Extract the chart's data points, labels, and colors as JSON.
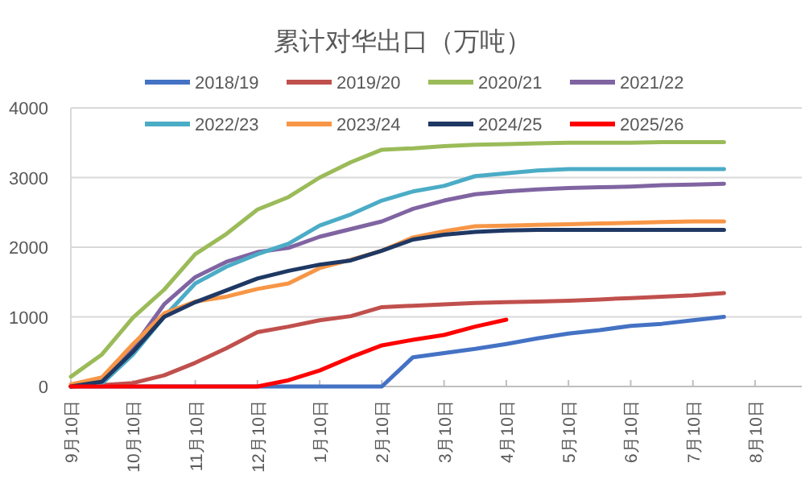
{
  "chart_data": {
    "type": "line",
    "title": "累计对华出口（万吨）",
    "legend": "top",
    "grid": "y",
    "ylim": [
      0,
      4000
    ],
    "yticks": [
      0,
      1000,
      2000,
      3000,
      4000
    ],
    "categories": [
      "9月10日",
      null,
      "10月10日",
      null,
      "11月10日",
      null,
      "12月10日",
      null,
      "1月10日",
      null,
      "2月10日",
      null,
      "3月10日",
      null,
      "4月10日",
      null,
      "5月10日",
      null,
      "6月10日",
      null,
      "7月10日",
      null,
      "8月10日",
      null
    ],
    "series": [
      {
        "name": "2018/19",
        "color": "#4472c4",
        "values": [
          0,
          0,
          0,
          0,
          0,
          0,
          0,
          0,
          0,
          0,
          0,
          420,
          480,
          540,
          610,
          690,
          760,
          810,
          870,
          900,
          950,
          1000,
          null,
          null
        ]
      },
      {
        "name": "2019/20",
        "color": "#c0504d",
        "values": [
          0,
          20,
          50,
          160,
          340,
          550,
          780,
          860,
          950,
          1010,
          1140,
          1160,
          1180,
          1200,
          1210,
          1220,
          1230,
          1250,
          1270,
          1290,
          1310,
          1340,
          null,
          null
        ]
      },
      {
        "name": "2020/21",
        "color": "#9bbb59",
        "values": [
          140,
          460,
          990,
          1390,
          1900,
          2190,
          2540,
          2720,
          3000,
          3220,
          3400,
          3420,
          3450,
          3470,
          3480,
          3490,
          3500,
          3500,
          3500,
          3510,
          3510,
          3510,
          null,
          null
        ]
      },
      {
        "name": "2021/22",
        "color": "#8064a2",
        "values": [
          0,
          40,
          560,
          1180,
          1570,
          1790,
          1930,
          1990,
          2150,
          2260,
          2370,
          2550,
          2670,
          2760,
          2800,
          2830,
          2850,
          2860,
          2870,
          2890,
          2900,
          2910,
          null,
          null
        ]
      },
      {
        "name": "2022/23",
        "color": "#4bacc6",
        "values": [
          0,
          40,
          460,
          1000,
          1480,
          1720,
          1900,
          2050,
          2310,
          2470,
          2670,
          2800,
          2880,
          3020,
          3060,
          3100,
          3120,
          3120,
          3120,
          3120,
          3120,
          3120,
          null,
          null
        ]
      },
      {
        "name": "2023/24",
        "color": "#f79646",
        "values": [
          30,
          130,
          610,
          1050,
          1220,
          1290,
          1400,
          1480,
          1700,
          1820,
          1950,
          2140,
          2230,
          2300,
          2310,
          2320,
          2330,
          2340,
          2350,
          2360,
          2370,
          2370,
          null,
          null
        ]
      },
      {
        "name": "2024/25",
        "color": "#1f3864",
        "values": [
          0,
          70,
          500,
          1000,
          1210,
          1380,
          1550,
          1660,
          1750,
          1810,
          1950,
          2110,
          2180,
          2220,
          2240,
          2250,
          2250,
          2250,
          2250,
          2250,
          2250,
          2250,
          null,
          null
        ]
      },
      {
        "name": "2025/26",
        "color": "#ff0000",
        "values": [
          0,
          0,
          0,
          0,
          0,
          0,
          0,
          90,
          230,
          420,
          590,
          670,
          740,
          860,
          960,
          null,
          null,
          null,
          null,
          null,
          null,
          null,
          null,
          null
        ]
      }
    ]
  }
}
